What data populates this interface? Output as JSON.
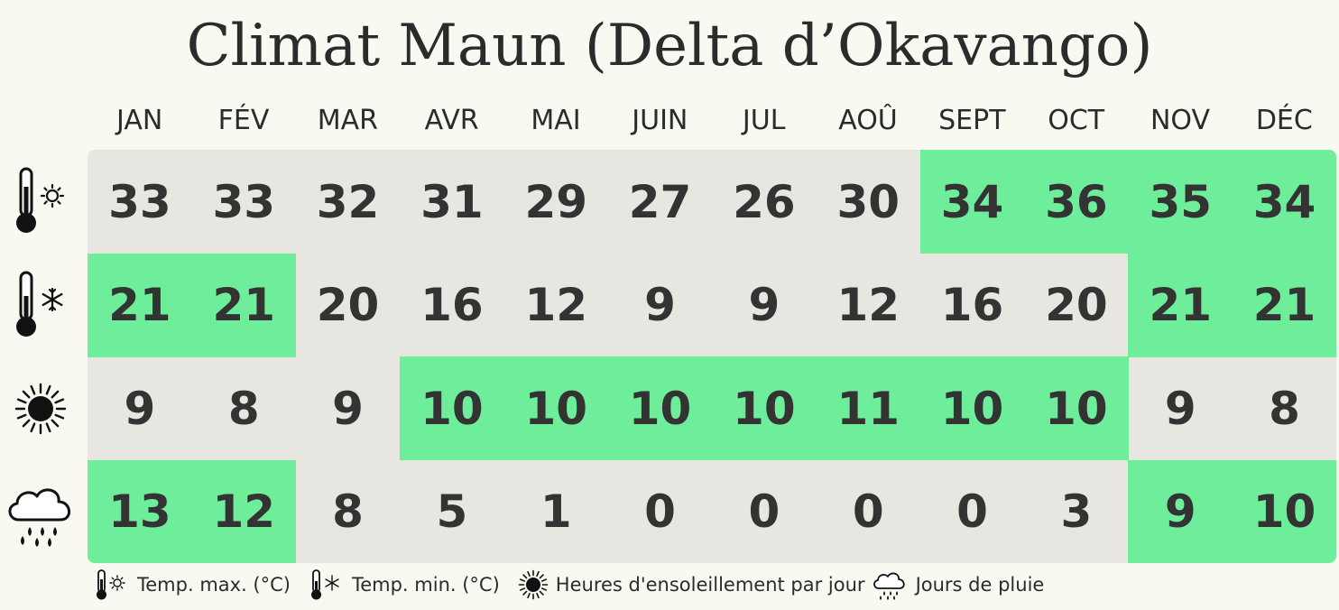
{
  "title": "Climat Maun (Delta d’Okavango)",
  "chart_data": {
    "type": "table",
    "columns": [
      "JAN",
      "FÉV",
      "MAR",
      "AVR",
      "MAI",
      "JUIN",
      "JUL",
      "AOÛ",
      "SEPT",
      "OCT",
      "NOV",
      "DÉC"
    ],
    "rows": [
      {
        "icon": "thermometer-sun-icon",
        "values": [
          33,
          33,
          32,
          31,
          29,
          27,
          26,
          30,
          34,
          36,
          35,
          34
        ],
        "highlighted": [
          false,
          false,
          false,
          false,
          false,
          false,
          false,
          false,
          true,
          true,
          true,
          true
        ]
      },
      {
        "icon": "thermometer-snowflake-icon",
        "values": [
          21,
          21,
          20,
          16,
          12,
          9,
          9,
          12,
          16,
          20,
          21,
          21
        ],
        "highlighted": [
          true,
          true,
          false,
          false,
          false,
          false,
          false,
          false,
          false,
          false,
          true,
          true
        ]
      },
      {
        "icon": "sun-icon",
        "values": [
          9,
          8,
          9,
          10,
          10,
          10,
          10,
          11,
          10,
          10,
          9,
          8
        ],
        "highlighted": [
          false,
          false,
          false,
          true,
          true,
          true,
          true,
          true,
          true,
          true,
          false,
          false
        ]
      },
      {
        "icon": "rain-cloud-icon",
        "values": [
          13,
          12,
          8,
          5,
          1,
          0,
          0,
          0,
          0,
          3,
          9,
          10
        ],
        "highlighted": [
          true,
          true,
          false,
          false,
          false,
          false,
          false,
          false,
          false,
          false,
          true,
          true
        ]
      }
    ],
    "colors": {
      "highlight": "#6eed9b",
      "cell": "#e8e6e0",
      "background": "#f9f8f1"
    }
  },
  "legend": [
    {
      "icon": "thermometer-sun-icon",
      "label": "Temp. max. (°C)"
    },
    {
      "icon": "thermometer-snowflake-icon",
      "label": "Temp. min. (°C)"
    },
    {
      "icon": "sun-icon",
      "label": "Heures d'ensoleillement par jour"
    },
    {
      "icon": "rain-cloud-icon",
      "label": "Jours de pluie"
    }
  ]
}
